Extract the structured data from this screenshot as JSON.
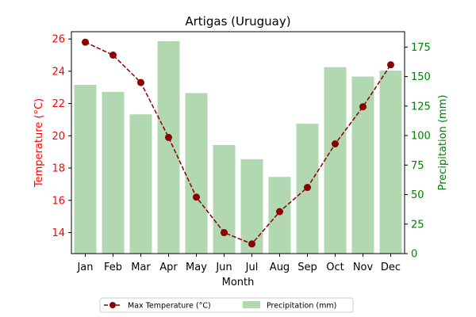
{
  "chart_data": {
    "type": "bar+line",
    "title": "Artigas (Uruguay)",
    "xlabel": "Month",
    "ylabel_left": "Temperature (°C)",
    "ylabel_right": "Precipitation (mm)",
    "categories": [
      "Jan",
      "Feb",
      "Mar",
      "Apr",
      "May",
      "Jun",
      "Jul",
      "Aug",
      "Sep",
      "Oct",
      "Nov",
      "Dec"
    ],
    "ylim_left": [
      12.7,
      26.45
    ],
    "ylim_right": [
      0,
      188
    ],
    "yticks_left": [
      14,
      16,
      18,
      20,
      22,
      24,
      26
    ],
    "yticks_right": [
      0,
      25,
      50,
      75,
      100,
      125,
      150,
      175
    ],
    "grid": false,
    "legend_position": "bottom-center",
    "series": [
      {
        "name": "Max Temperature (°C)",
        "type": "line",
        "axis": "left",
        "color": "#8b0000",
        "marker": "circle",
        "linestyle": "dashed",
        "values": [
          25.8,
          25.0,
          23.3,
          19.9,
          16.2,
          14.0,
          13.3,
          15.3,
          16.8,
          19.5,
          21.8,
          24.4
        ]
      },
      {
        "name": "Precipitation (mm)",
        "type": "bar",
        "axis": "right",
        "color": "#b2d8b2",
        "values": [
          143,
          137,
          118,
          180,
          136,
          92,
          80,
          65,
          110,
          158,
          150,
          155
        ]
      }
    ],
    "colors": {
      "left_axis": "#ff0000",
      "right_axis": "#008000",
      "axis": "#000000"
    }
  }
}
